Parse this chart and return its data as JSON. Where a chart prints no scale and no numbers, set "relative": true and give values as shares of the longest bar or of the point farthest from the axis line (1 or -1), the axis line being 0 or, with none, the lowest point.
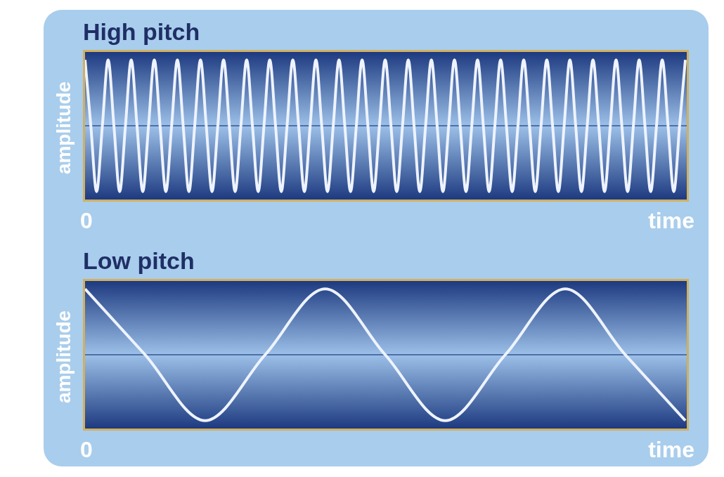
{
  "chart_data": [
    {
      "type": "line",
      "title": "High pitch",
      "xlabel": "time",
      "ylabel": "amplitude",
      "relative": true,
      "annotations": [
        "0"
      ],
      "ref_lines": [
        {
          "axis": "y",
          "value": 0,
          "color": "#4f6fa8"
        }
      ],
      "categories": [
        null,
        null,
        null,
        null,
        null,
        null,
        null,
        null,
        null,
        null,
        null,
        null,
        null,
        null,
        null,
        null,
        null,
        null,
        null,
        null,
        null,
        null,
        null,
        null,
        null,
        null,
        null,
        null,
        null,
        null,
        null,
        null,
        null,
        null,
        null,
        null,
        null,
        null,
        null,
        null,
        null,
        null,
        null,
        null,
        null,
        null,
        null,
        null,
        null,
        null,
        null,
        null,
        null,
        null,
        null,
        null,
        null,
        null,
        null,
        null,
        null,
        null,
        null,
        null,
        null,
        null,
        null,
        null,
        null,
        null,
        null,
        null,
        null,
        null,
        null,
        null,
        null,
        null,
        null,
        null,
        null,
        null,
        null,
        null,
        null,
        null,
        null,
        null,
        null,
        null,
        null,
        null,
        null,
        null,
        null,
        null,
        null,
        null,
        null,
        null,
        null,
        null,
        null,
        null,
        null
      ],
      "series": [
        {
          "color": "#eef3ff",
          "values": [
            1,
            0,
            -1,
            0,
            1,
            0,
            -1,
            0,
            1,
            0,
            -1,
            0,
            1,
            0,
            -1,
            0,
            1,
            0,
            -1,
            0,
            1,
            0,
            -1,
            0,
            1,
            0,
            -1,
            0,
            1,
            0,
            -1,
            0,
            1,
            0,
            -1,
            0,
            1,
            0,
            -1,
            0,
            1,
            0,
            -1,
            0,
            1,
            0,
            -1,
            0,
            1,
            0,
            -1,
            0,
            1,
            0,
            -1,
            0,
            1,
            0,
            -1,
            0,
            1,
            0,
            -1,
            0,
            1,
            0,
            -1,
            0,
            1,
            0,
            -1,
            0,
            1,
            0,
            -1,
            0,
            1,
            0,
            -1,
            0,
            1,
            0,
            -1,
            0,
            1,
            0,
            -1,
            0,
            1,
            0,
            -1,
            0,
            1,
            0,
            -1,
            0,
            1,
            0,
            -1,
            0,
            1,
            0,
            -1,
            0,
            1
          ]
        }
      ]
    },
    {
      "type": "line",
      "title": "Low pitch",
      "xlabel": "time",
      "ylabel": "amplitude",
      "relative": true,
      "annotations": [
        "0"
      ],
      "ref_lines": [
        {
          "axis": "y",
          "value": 0,
          "color": "#4f6fa8"
        }
      ],
      "categories": [
        null,
        null,
        null,
        null,
        null,
        null,
        null,
        null,
        null,
        null,
        null
      ],
      "series": [
        {
          "color": "#eef3ff",
          "values": [
            1,
            0,
            -1,
            0,
            1,
            0,
            -1,
            0,
            1,
            0,
            -1
          ]
        }
      ]
    }
  ]
}
